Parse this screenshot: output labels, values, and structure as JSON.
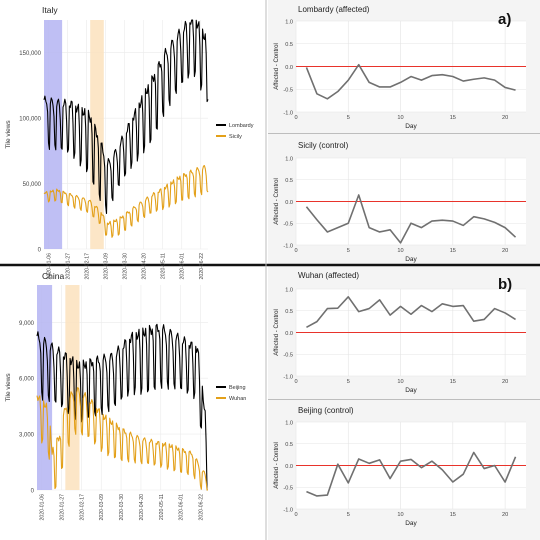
{
  "figure": {
    "panel_labels": [
      "a)",
      "b)"
    ]
  },
  "chart_data": [
    {
      "id": "italy",
      "type": "line",
      "title": "Italy",
      "xlabel": "",
      "ylabel": "Tile views",
      "ylim": [
        0,
        175000
      ],
      "yticks": [
        0,
        50000,
        100000,
        150000
      ],
      "ytick_labels": [
        "0",
        "50,000",
        "100,000",
        "150,000"
      ],
      "x_start": "2020-01-01",
      "x_end": "2020-06-30",
      "xticks": [
        "2020-01-06",
        "2020-01-27",
        "2020-02-17",
        "2020-03-09",
        "2020-03-30",
        "2020-04-20",
        "2020-05-11",
        "2020-06-01",
        "2020-06-22"
      ],
      "highlights": [
        {
          "start": "2020-01-01",
          "end": "2020-01-21",
          "color": "#b4b4f2"
        },
        {
          "start": "2020-02-21",
          "end": "2020-03-07",
          "color": "#fbe2bd"
        }
      ],
      "series": [
        {
          "name": "Lombardy",
          "color": "#000000",
          "base": [
            [
              0,
              100000
            ],
            [
              14,
              97000
            ],
            [
              30,
              95000
            ],
            [
              50,
              85000
            ],
            [
              62,
              65000
            ],
            [
              70,
              50000
            ],
            [
              82,
              65000
            ],
            [
              100,
              88000
            ],
            [
              118,
              110000
            ],
            [
              132,
              130000
            ],
            [
              150,
              148000
            ],
            [
              165,
              160000
            ],
            [
              181,
              140000
            ]
          ],
          "amp": [
            [
              0,
              20000
            ],
            [
              60,
              25000
            ],
            [
              80,
              18000
            ],
            [
              120,
              25000
            ],
            [
              181,
              25000
            ]
          ]
        },
        {
          "name": "Sicily",
          "color": "#e3a019",
          "base": [
            [
              0,
              40000
            ],
            [
              14,
              42000
            ],
            [
              30,
              38000
            ],
            [
              50,
              33000
            ],
            [
              62,
              25000
            ],
            [
              70,
              15000
            ],
            [
              82,
              18000
            ],
            [
              100,
              27000
            ],
            [
              118,
              35000
            ],
            [
              132,
              40000
            ],
            [
              150,
              48000
            ],
            [
              165,
              52000
            ],
            [
              181,
              55000
            ]
          ],
          "amp": [
            [
              0,
              4000
            ],
            [
              60,
              6000
            ],
            [
              100,
              7000
            ],
            [
              181,
              12000
            ]
          ]
        }
      ]
    },
    {
      "id": "china",
      "type": "line",
      "title": "China",
      "xlabel": "",
      "ylabel": "Tile views",
      "ylim": [
        0,
        11000
      ],
      "yticks": [
        0,
        3000,
        6000,
        9000
      ],
      "ytick_labels": [
        "0",
        "3,000",
        "6,000",
        "9,000"
      ],
      "x_start": "2020-01-01",
      "x_end": "2020-06-30",
      "xticks": [
        "2020-01-06",
        "2020-01-27",
        "2020-02-17",
        "2020-03-09",
        "2020-03-30",
        "2020-04-20",
        "2020-05-11",
        "2020-06-01",
        "2020-06-22"
      ],
      "highlights": [
        {
          "start": "2020-01-01",
          "end": "2020-01-17",
          "color": "#b4b4f2"
        },
        {
          "start": "2020-01-31",
          "end": "2020-02-15",
          "color": "#fbe2bd"
        }
      ],
      "series": [
        {
          "name": "Beijing",
          "color": "#000000",
          "base": [
            [
              0,
              7000
            ],
            [
              14,
              6500
            ],
            [
              30,
              6000
            ],
            [
              45,
              5500
            ],
            [
              60,
              5800
            ],
            [
              80,
              6000
            ],
            [
              100,
              7000
            ],
            [
              130,
              7500
            ],
            [
              150,
              7000
            ],
            [
              170,
              6500
            ],
            [
              178,
              3000
            ],
            [
              181,
              500
            ]
          ],
          "amp": [
            [
              0,
              1800
            ],
            [
              60,
              1600
            ],
            [
              120,
              1800
            ],
            [
              181,
              1500
            ]
          ]
        },
        {
          "name": "Wuhan",
          "color": "#e3a019",
          "base": [
            [
              0,
              4200
            ],
            [
              12,
              3500
            ],
            [
              16,
              1200
            ],
            [
              24,
              2000
            ],
            [
              30,
              3500
            ],
            [
              40,
              4500
            ],
            [
              55,
              4000
            ],
            [
              70,
              3200
            ],
            [
              90,
              2600
            ],
            [
              110,
              2200
            ],
            [
              140,
              1900
            ],
            [
              165,
              1500
            ],
            [
              175,
              600
            ],
            [
              181,
              300
            ]
          ],
          "amp": [
            [
              0,
              1200
            ],
            [
              40,
              1400
            ],
            [
              100,
              800
            ],
            [
              181,
              600
            ]
          ]
        }
      ]
    },
    {
      "id": "lombardy",
      "type": "line",
      "title": "Lombardy (affected)",
      "xlabel": "Day",
      "ylabel": "Affected - Control",
      "xlim": [
        0,
        22
      ],
      "ylim": [
        -1.0,
        1.0
      ],
      "xticks": [
        0,
        5,
        10,
        15,
        20
      ],
      "yticks": [
        -1.0,
        -0.5,
        0.0,
        0.5,
        1.0
      ],
      "ytick_labels": [
        "-1.0",
        "-0.5",
        "0.0",
        "0.5",
        "1.0"
      ],
      "reference_line": 0,
      "series": [
        {
          "color": "#707070",
          "x": [
            1,
            2,
            3,
            4,
            5,
            6,
            7,
            8,
            9,
            10,
            11,
            12,
            13,
            14,
            15,
            16,
            17,
            18,
            19,
            20,
            21
          ],
          "y": [
            -0.02,
            -0.6,
            -0.71,
            -0.55,
            -0.3,
            0.04,
            -0.35,
            -0.45,
            -0.45,
            -0.35,
            -0.22,
            -0.3,
            -0.2,
            -0.18,
            -0.22,
            -0.32,
            -0.28,
            -0.25,
            -0.3,
            -0.46,
            -0.52
          ]
        }
      ]
    },
    {
      "id": "sicily",
      "type": "line",
      "title": "Sicily (control)",
      "xlabel": "Day",
      "ylabel": "Affected - Control",
      "xlim": [
        0,
        22
      ],
      "ylim": [
        -1.0,
        1.0
      ],
      "xticks": [
        0,
        5,
        10,
        15,
        20
      ],
      "yticks": [
        -1.0,
        -0.5,
        0.0,
        0.5,
        1.0
      ],
      "ytick_labels": [
        "-1.0",
        "-0.5",
        "0.0",
        "0.5",
        "1.0"
      ],
      "reference_line": 0,
      "series": [
        {
          "color": "#707070",
          "x": [
            1,
            2,
            3,
            4,
            5,
            6,
            7,
            8,
            9,
            10,
            11,
            12,
            13,
            14,
            15,
            16,
            17,
            18,
            19,
            20,
            21
          ],
          "y": [
            -0.12,
            -0.42,
            -0.7,
            -0.6,
            -0.5,
            0.15,
            -0.6,
            -0.7,
            -0.65,
            -0.95,
            -0.5,
            -0.6,
            -0.45,
            -0.43,
            -0.45,
            -0.55,
            -0.35,
            -0.4,
            -0.48,
            -0.6,
            -0.82
          ]
        }
      ]
    },
    {
      "id": "wuhan",
      "type": "line",
      "title": "Wuhan (affected)",
      "xlabel": "Day",
      "ylabel": "Affected - Control",
      "xlim": [
        0,
        22
      ],
      "ylim": [
        -1.0,
        1.0
      ],
      "xticks": [
        0,
        5,
        10,
        15,
        20
      ],
      "yticks": [
        -1.0,
        -0.5,
        0.0,
        0.5,
        1.0
      ],
      "ytick_labels": [
        "-1.0",
        "-0.5",
        "0.0",
        "0.5",
        "1.0"
      ],
      "reference_line": 0,
      "series": [
        {
          "color": "#707070",
          "x": [
            1,
            2,
            3,
            4,
            5,
            6,
            7,
            8,
            9,
            10,
            11,
            12,
            13,
            14,
            15,
            16,
            17,
            18,
            19,
            20,
            21
          ],
          "y": [
            0.12,
            0.25,
            0.55,
            0.56,
            0.82,
            0.48,
            0.55,
            0.75,
            0.4,
            0.6,
            0.42,
            0.62,
            0.48,
            0.66,
            0.6,
            0.62,
            0.26,
            0.3,
            0.55,
            0.45,
            0.3
          ]
        }
      ]
    },
    {
      "id": "beijing",
      "type": "line",
      "title": "Beijing (control)",
      "xlabel": "Day",
      "ylabel": "Affected - Control",
      "xlim": [
        0,
        22
      ],
      "ylim": [
        -1.0,
        1.0
      ],
      "xticks": [
        0,
        5,
        10,
        15,
        20
      ],
      "yticks": [
        -1.0,
        -0.5,
        0.0,
        0.5,
        1.0
      ],
      "ytick_labels": [
        "-1.0",
        "-0.5",
        "0.0",
        "0.5",
        "1.0"
      ],
      "reference_line": 0,
      "series": [
        {
          "color": "#707070",
          "x": [
            1,
            2,
            3,
            4,
            5,
            6,
            7,
            8,
            9,
            10,
            11,
            12,
            13,
            14,
            15,
            16,
            17,
            18,
            19,
            20,
            21
          ],
          "y": [
            -0.6,
            -0.7,
            -0.68,
            0.03,
            -0.4,
            0.15,
            0.05,
            0.13,
            -0.3,
            0.1,
            0.14,
            -0.05,
            0.1,
            -0.1,
            -0.38,
            -0.2,
            0.3,
            -0.07,
            0.0,
            -0.38,
            0.2
          ]
        }
      ]
    }
  ]
}
